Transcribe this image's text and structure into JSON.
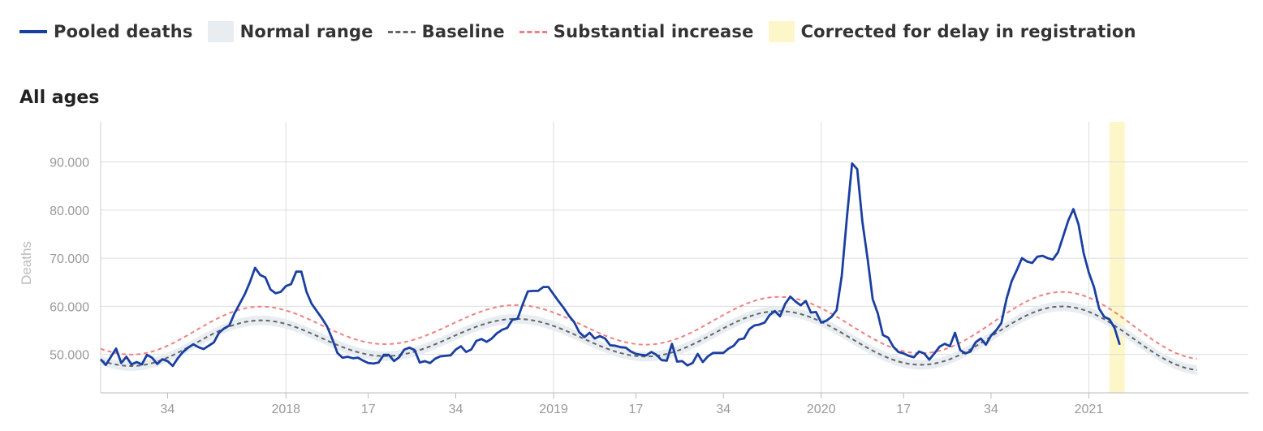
{
  "legend": {
    "pooled": "Pooled deaths",
    "normal": "Normal range",
    "baseline": "Baseline",
    "substantial": "Substantial increase",
    "corrected": "Corrected for delay in registration"
  },
  "colors": {
    "pooled": "#1a3fa0",
    "normal_band": "#e8edf2",
    "baseline": "#666666",
    "substantial": "#f08080",
    "corrected": "#fdf6c8",
    "grid": "#dddddd",
    "tick_text": "#999999"
  },
  "chart_data": {
    "type": "line",
    "title": "All ages",
    "ylabel": "Deaths",
    "xlabel": "",
    "ylim": [
      42000,
      96000
    ],
    "xlim": [
      0,
      223
    ],
    "grid": true,
    "legend_position": "top",
    "yticks": [
      {
        "value": 50000,
        "label": "50.000"
      },
      {
        "value": 60000,
        "label": "60.000"
      },
      {
        "value": 70000,
        "label": "70.000"
      },
      {
        "value": 80000,
        "label": "80.000"
      },
      {
        "value": 90000,
        "label": "90.000"
      }
    ],
    "xticks": [
      {
        "pos": 13,
        "label": "34"
      },
      {
        "pos": 36,
        "label": "2018"
      },
      {
        "pos": 52,
        "label": "17"
      },
      {
        "pos": 69,
        "label": "34"
      },
      {
        "pos": 88,
        "label": "2019"
      },
      {
        "pos": 104,
        "label": "17"
      },
      {
        "pos": 121,
        "label": "34"
      },
      {
        "pos": 140,
        "label": "2020"
      },
      {
        "pos": 156,
        "label": "17"
      },
      {
        "pos": 173,
        "label": "34"
      },
      {
        "pos": 192,
        "label": "2021"
      }
    ],
    "major_gridlines": [
      36,
      88,
      140,
      192
    ],
    "corrected_range": [
      196,
      199
    ],
    "series": [
      {
        "name": "Pooled deaths",
        "y": [
          49000,
          47800,
          49500,
          51200,
          48200,
          49500,
          47900,
          48400,
          47900,
          49900,
          49300,
          48000,
          49000,
          48600,
          47600,
          49200,
          50500,
          51400,
          52100,
          51500,
          51100,
          51800,
          52500,
          54500,
          55400,
          56000,
          58500,
          60500,
          62500,
          65000,
          68000,
          66500,
          66000,
          63500,
          62700,
          63000,
          64200,
          64600,
          67200,
          67200,
          63000,
          60500,
          59000,
          57500,
          55800,
          53200,
          50300,
          49300,
          49500,
          49200,
          49300,
          48700,
          48200,
          48100,
          48300,
          49900,
          49900,
          48600,
          49400,
          51000,
          51400,
          50900,
          48300,
          48600,
          48200,
          49100,
          49600,
          49700,
          49800,
          51000,
          51700,
          50500,
          51000,
          52800,
          53200,
          52600,
          53300,
          54400,
          55100,
          55500,
          57200,
          57400,
          60400,
          63100,
          63200,
          63200,
          64000,
          64000,
          62500,
          61000,
          59600,
          58000,
          56700,
          54600,
          53600,
          54500,
          53300,
          53800,
          53300,
          51900,
          51800,
          51500,
          51400,
          50600,
          50100,
          49900,
          49800,
          50500,
          49900,
          48800,
          48700,
          52200,
          48500,
          48600,
          47700,
          48200,
          50100,
          48400,
          49600,
          50300,
          50300,
          50300,
          51200,
          51800,
          53100,
          53300,
          55200,
          56000,
          56200,
          56600,
          58200,
          59000,
          57900,
          60500,
          62000,
          61000,
          60200,
          61100,
          58700,
          58800,
          56600,
          57000,
          57800,
          59200,
          66400,
          78500,
          89700,
          88500,
          77600,
          70000,
          61500,
          58500,
          54000,
          53500,
          51600,
          50500,
          50200,
          49700,
          49400,
          50600,
          50200,
          48900,
          50200,
          51600,
          52200,
          51700,
          54500,
          50900,
          50200,
          50600,
          52500,
          53300,
          52000,
          53900,
          55000,
          56500,
          61500,
          65200,
          67500,
          70000,
          69300,
          69000,
          70300,
          70500,
          70000,
          69700,
          71200,
          74500,
          77800,
          80200,
          77000,
          71000,
          67000,
          64000,
          59500,
          57800,
          57300,
          55500,
          52000
        ]
      },
      {
        "name": "Baseline",
        "y": [
          48720,
          48393,
          48109,
          47878,
          47707,
          47603,
          47571,
          47612,
          47728,
          47916,
          48175,
          48500,
          48885,
          49325,
          49812,
          50338,
          50894,
          51473,
          52064,
          52658,
          53246,
          53818,
          54367,
          54883,
          55358,
          55786,
          56160,
          56474,
          56725,
          56910,
          57026,
          57073,
          57052,
          56963,
          56808,
          56592,
          56320,
          55996,
          55627,
          55219,
          54781,
          54319,
          53842,
          53359,
          52876,
          52404,
          51948,
          51518,
          51119,
          50758,
          50441,
          50172,
          49955,
          49794,
          49690,
          49645,
          49659,
          49731,
          49860,
          50044,
          50280,
          50565,
          50895,
          51264,
          51668,
          52100,
          52555,
          53025,
          53502,
          53981,
          54452,
          54910,
          55346,
          55754,
          56128,
          56462,
          56750,
          56989,
          57174,
          57302,
          57373,
          57384,
          57337,
          57232,
          57069,
          56853,
          56584,
          56269,
          55910,
          55514,
          55086,
          54632,
          54160,
          53676,
          53189,
          52705,
          52232,
          51778,
          51349,
          50953,
          50596,
          50283,
          50020,
          49811,
          49659,
          49569,
          49544,
          49583,
          49687,
          49856,
          50087,
          50379,
          50727,
          51126,
          51573,
          52061,
          52583,
          53132,
          53699,
          54276,
          54853,
          55423,
          55976,
          56503,
          56997,
          57451,
          57858,
          58211,
          58504,
          58734,
          58897,
          58989,
          59010,
          58960,
          58839,
          58648,
          58391,
          58070,
          57691,
          57256,
          56770,
          56241,
          55677,
          55083,
          54467,
          53838,
          53203,
          52571,
          51949,
          51346,
          50769,
          50225,
          49722,
          49267,
          48865,
          48522,
          48244,
          48035,
          47897,
          47833,
          47845,
          47931,
          48092,
          48325,
          48629,
          49000,
          49434,
          49925,
          50468,
          51056,
          51682,
          52338,
          53015,
          53705,
          54399,
          55088,
          55763,
          56415,
          57035,
          57615,
          58147,
          58623,
          59036,
          59380,
          59651,
          59843,
          59953,
          59980,
          59921,
          59778,
          59552,
          59245,
          58862,
          58407,
          57885,
          57305,
          56672,
          55996,
          55285,
          54547,
          53792,
          53030,
          52271,
          51524,
          50800,
          50109,
          49460,
          48861,
          48322,
          47848,
          47448,
          47127,
          46888,
          46737
        ]
      }
    ]
  }
}
